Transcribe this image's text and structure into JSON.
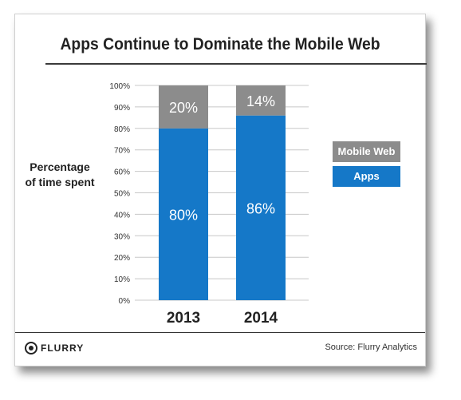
{
  "title": "Apps Continue to Dominate the Mobile Web",
  "ylabel_lines": [
    "Percentage",
    "of time spent"
  ],
  "legend": [
    {
      "label": "Mobile Web",
      "color": "#8c8c8c"
    },
    {
      "label": "Apps",
      "color": "#1578c8"
    }
  ],
  "footer": {
    "logo_text": "FLURRY",
    "source": "Source: Flurry Analytics"
  },
  "chart_data": {
    "type": "bar",
    "stacked": true,
    "title": "Apps Continue to Dominate the Mobile Web",
    "ylabel": "Percentage of time spent",
    "xlabel": "",
    "categories": [
      "2013",
      "2014"
    ],
    "series": [
      {
        "name": "Apps",
        "values": [
          80,
          86
        ],
        "color": "#1578c8",
        "labels": [
          "80%",
          "86%"
        ]
      },
      {
        "name": "Mobile Web",
        "values": [
          20,
          14
        ],
        "color": "#8c8c8c",
        "labels": [
          "20%",
          "14%"
        ]
      }
    ],
    "ylim": [
      0,
      100
    ],
    "yticks": [
      "0%",
      "10%",
      "20%",
      "30%",
      "40%",
      "50%",
      "60%",
      "70%",
      "80%",
      "90%",
      "100%"
    ],
    "grid": true,
    "legend_position": "right"
  }
}
